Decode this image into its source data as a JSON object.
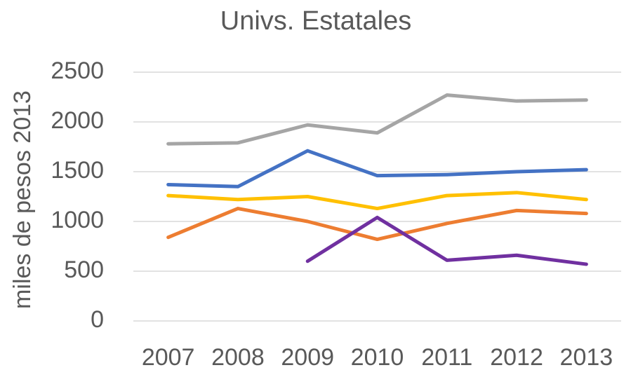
{
  "chart_data": {
    "type": "line",
    "title": "Univs. Estatales",
    "y_label": "miles de pesos 2013",
    "categories": [
      "2007",
      "2008",
      "2009",
      "2010",
      "2011",
      "2012",
      "2013"
    ],
    "series": [
      {
        "color": "#a5a5a5",
        "values": [
          1780,
          1790,
          1970,
          1890,
          2270,
          2210,
          2220
        ]
      },
      {
        "color": "#4472c4",
        "values": [
          1370,
          1350,
          1710,
          1460,
          1470,
          1500,
          1520
        ]
      },
      {
        "color": "#ffc000",
        "values": [
          1260,
          1220,
          1250,
          1130,
          1260,
          1290,
          1220
        ]
      },
      {
        "color": "#ed7d31",
        "values": [
          840,
          1130,
          1000,
          820,
          980,
          1110,
          1080
        ]
      },
      {
        "color": "#7030a0",
        "values": [
          null,
          null,
          600,
          1040,
          610,
          660,
          570
        ]
      }
    ],
    "ylim": [
      0,
      2500
    ],
    "yticks": [
      0,
      500,
      1000,
      1500,
      2000,
      2500
    ],
    "grid": true
  }
}
